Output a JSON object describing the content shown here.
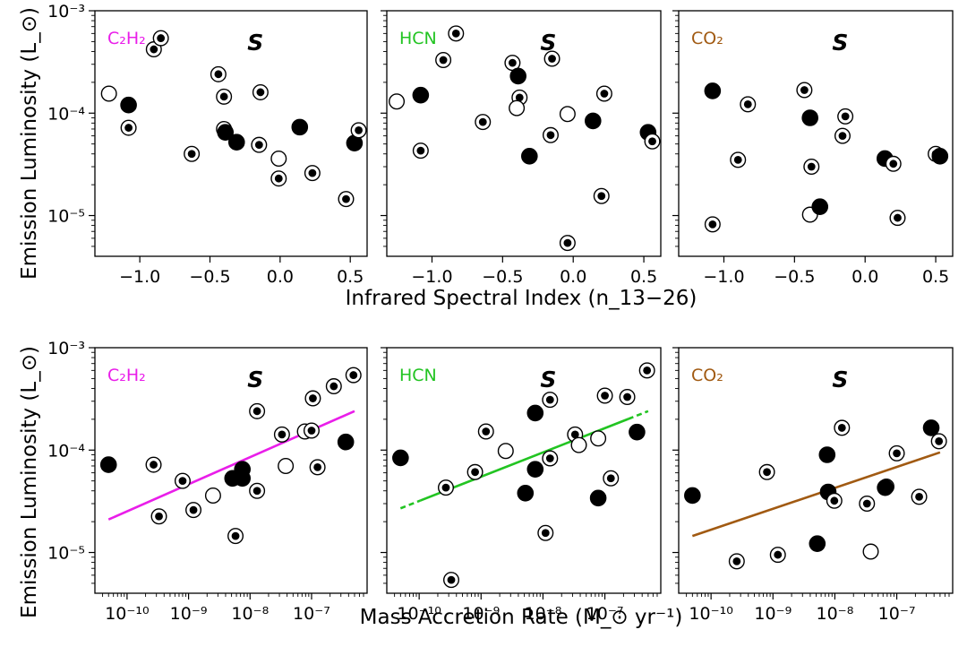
{
  "figure": {
    "row_ylabels": [
      "Emission Luminosity (L_⊙)",
      "Emission Luminosity (L_⊙)"
    ],
    "row_xlabels": [
      "Infrared Spectral Index (n_13−26)",
      "Mass Accretion Rate (M_⊙ yr⁻¹)"
    ]
  },
  "chart_data": [
    {
      "type": "scatter",
      "panel": "top-left",
      "molecule_label": "C₂H₂",
      "molecule_color": "#e91ee9",
      "stamp": "S",
      "x_scale": "linear",
      "y_scale": "log",
      "xlim": [
        -1.32,
        0.62
      ],
      "ylim": [
        4e-06,
        0.001
      ],
      "xticks": [
        -1.0,
        -0.5,
        0.0,
        0.5
      ],
      "xtick_labels": [
        "−1.0",
        "−0.5",
        "0.0",
        "0.5"
      ],
      "yticks": [
        1e-05,
        0.0001,
        0.001
      ],
      "ytick_labels": [
        "10⁻⁵",
        "10⁻⁴",
        "10⁻³"
      ],
      "points": [
        {
          "x": -1.22,
          "y": 0.000155,
          "m": "open"
        },
        {
          "x": -1.08,
          "y": 0.00012,
          "m": "filled"
        },
        {
          "x": -1.08,
          "y": 7.2e-05,
          "m": "dot"
        },
        {
          "x": -0.9,
          "y": 0.00042,
          "m": "dot"
        },
        {
          "x": -0.85,
          "y": 0.00054,
          "m": "dot"
        },
        {
          "x": -0.63,
          "y": 4e-05,
          "m": "dot"
        },
        {
          "x": -0.44,
          "y": 0.00024,
          "m": "dot"
        },
        {
          "x": -0.4,
          "y": 0.000145,
          "m": "dot"
        },
        {
          "x": -0.4,
          "y": 7e-05,
          "m": "dot"
        },
        {
          "x": -0.39,
          "y": 6.5e-05,
          "m": "filled"
        },
        {
          "x": -0.31,
          "y": 5.2e-05,
          "m": "filled"
        },
        {
          "x": -0.14,
          "y": 0.00016,
          "m": "dot"
        },
        {
          "x": -0.15,
          "y": 4.9e-05,
          "m": "dot"
        },
        {
          "x": -0.01,
          "y": 3.6e-05,
          "m": "open"
        },
        {
          "x": -0.01,
          "y": 2.3e-05,
          "m": "dot"
        },
        {
          "x": 0.14,
          "y": 7.3e-05,
          "m": "filled"
        },
        {
          "x": 0.23,
          "y": 2.6e-05,
          "m": "dot"
        },
        {
          "x": 0.47,
          "y": 1.45e-05,
          "m": "dot"
        },
        {
          "x": 0.53,
          "y": 5.1e-05,
          "m": "filled"
        },
        {
          "x": 0.56,
          "y": 6.8e-05,
          "m": "dot"
        }
      ]
    },
    {
      "type": "scatter",
      "panel": "top-middle",
      "molecule_label": "HCN",
      "molecule_color": "#22c422",
      "stamp": "S",
      "x_scale": "linear",
      "y_scale": "log",
      "xlim": [
        -1.32,
        0.62
      ],
      "ylim": [
        4e-06,
        0.001
      ],
      "xticks": [
        -1.0,
        -0.5,
        0.0,
        0.5
      ],
      "xtick_labels": [
        "−1.0",
        "−0.5",
        "0.0",
        "0.5"
      ],
      "yticks": [
        1e-05,
        0.0001,
        0.001
      ],
      "ytick_labels": [
        "",
        "",
        ""
      ],
      "points": [
        {
          "x": -1.25,
          "y": 0.00013,
          "m": "open"
        },
        {
          "x": -1.08,
          "y": 0.00015,
          "m": "filled"
        },
        {
          "x": -1.08,
          "y": 4.3e-05,
          "m": "dot"
        },
        {
          "x": -0.92,
          "y": 0.00033,
          "m": "dot"
        },
        {
          "x": -0.83,
          "y": 0.0006,
          "m": "dot"
        },
        {
          "x": -0.64,
          "y": 8.2e-05,
          "m": "dot"
        },
        {
          "x": -0.43,
          "y": 0.00031,
          "m": "dot"
        },
        {
          "x": -0.39,
          "y": 0.00023,
          "m": "filled"
        },
        {
          "x": -0.38,
          "y": 0.000142,
          "m": "dot"
        },
        {
          "x": -0.4,
          "y": 0.000112,
          "m": "open"
        },
        {
          "x": -0.31,
          "y": 3.8e-05,
          "m": "filled"
        },
        {
          "x": -0.15,
          "y": 0.00034,
          "m": "dot"
        },
        {
          "x": -0.16,
          "y": 6.1e-05,
          "m": "dot"
        },
        {
          "x": -0.04,
          "y": 9.8e-05,
          "m": "open"
        },
        {
          "x": -0.04,
          "y": 5.4e-06,
          "m": "dot"
        },
        {
          "x": 0.14,
          "y": 8.4e-05,
          "m": "filled"
        },
        {
          "x": 0.22,
          "y": 0.000155,
          "m": "dot"
        },
        {
          "x": 0.2,
          "y": 1.55e-05,
          "m": "dot"
        },
        {
          "x": 0.53,
          "y": 6.5e-05,
          "m": "filled"
        },
        {
          "x": 0.56,
          "y": 5.3e-05,
          "m": "dot"
        }
      ]
    },
    {
      "type": "scatter",
      "panel": "top-right",
      "molecule_label": "CO₂",
      "molecule_color": "#a15a12",
      "stamp": "S",
      "x_scale": "linear",
      "y_scale": "log",
      "xlim": [
        -1.32,
        0.62
      ],
      "ylim": [
        4e-06,
        0.001
      ],
      "xticks": [
        -1.0,
        -0.5,
        0.0,
        0.5
      ],
      "xtick_labels": [
        "−1.0",
        "−0.5",
        "0.0",
        "0.5"
      ],
      "yticks": [
        1e-05,
        0.0001,
        0.001
      ],
      "ytick_labels": [
        "",
        "",
        ""
      ],
      "points": [
        {
          "x": -1.08,
          "y": 0.000165,
          "m": "filled"
        },
        {
          "x": -1.08,
          "y": 8.2e-06,
          "m": "dot"
        },
        {
          "x": -0.83,
          "y": 0.000122,
          "m": "dot"
        },
        {
          "x": -0.9,
          "y": 3.5e-05,
          "m": "dot"
        },
        {
          "x": -0.43,
          "y": 0.000168,
          "m": "dot"
        },
        {
          "x": -0.39,
          "y": 9e-05,
          "m": "filled"
        },
        {
          "x": -0.38,
          "y": 3e-05,
          "m": "dot"
        },
        {
          "x": -0.39,
          "y": 1.02e-05,
          "m": "open"
        },
        {
          "x": -0.32,
          "y": 1.22e-05,
          "m": "filled"
        },
        {
          "x": -0.14,
          "y": 9.3e-05,
          "m": "dot"
        },
        {
          "x": -0.16,
          "y": 6e-05,
          "m": "dot"
        },
        {
          "x": 0.14,
          "y": 3.6e-05,
          "m": "filled"
        },
        {
          "x": 0.2,
          "y": 3.2e-05,
          "m": "dot"
        },
        {
          "x": 0.23,
          "y": 9.5e-06,
          "m": "dot"
        },
        {
          "x": 0.5,
          "y": 4e-05,
          "m": "dot"
        },
        {
          "x": 0.53,
          "y": 3.8e-05,
          "m": "filled"
        }
      ]
    },
    {
      "type": "scatter",
      "panel": "bottom-left",
      "molecule_label": "C₂H₂",
      "molecule_color": "#e91ee9",
      "stamp": "S",
      "x_scale": "log",
      "y_scale": "log",
      "xlim": [
        3e-11,
        8e-07
      ],
      "ylim": [
        4e-06,
        0.001
      ],
      "xticks": [
        1e-10,
        1e-09,
        1e-08,
        1e-07
      ],
      "xtick_labels": [
        "10⁻¹⁰",
        "10⁻⁹",
        "10⁻⁸",
        "10⁻⁷"
      ],
      "yticks": [
        1e-05,
        0.0001,
        0.001
      ],
      "ytick_labels": [
        "10⁻⁵",
        "10⁻⁴",
        "10⁻³"
      ],
      "fit": {
        "x": [
          5e-11,
          5e-07
        ],
        "y": [
          2.1e-05,
          0.00024
        ],
        "style": "solid"
      },
      "points": [
        {
          "x": 5e-11,
          "y": 7.2e-05,
          "m": "filled"
        },
        {
          "x": 2.7e-10,
          "y": 7.2e-05,
          "m": "dot"
        },
        {
          "x": 3.3e-10,
          "y": 2.25e-05,
          "m": "dot"
        },
        {
          "x": 8e-10,
          "y": 5e-05,
          "m": "dot"
        },
        {
          "x": 1.2e-09,
          "y": 2.6e-05,
          "m": "dot"
        },
        {
          "x": 2.5e-09,
          "y": 3.6e-05,
          "m": "open"
        },
        {
          "x": 5.2e-09,
          "y": 5.3e-05,
          "m": "filled"
        },
        {
          "x": 5.8e-09,
          "y": 1.45e-05,
          "m": "dot"
        },
        {
          "x": 7.5e-09,
          "y": 6.5e-05,
          "m": "filled"
        },
        {
          "x": 7.5e-09,
          "y": 5.3e-05,
          "m": "filled"
        },
        {
          "x": 1.3e-08,
          "y": 0.00024,
          "m": "dot"
        },
        {
          "x": 1.3e-08,
          "y": 4e-05,
          "m": "dot"
        },
        {
          "x": 3.3e-08,
          "y": 0.000142,
          "m": "dot"
        },
        {
          "x": 3.8e-08,
          "y": 7e-05,
          "m": "open"
        },
        {
          "x": 7.8e-08,
          "y": 0.000152,
          "m": "open"
        },
        {
          "x": 1e-07,
          "y": 0.000155,
          "m": "dot"
        },
        {
          "x": 1.05e-07,
          "y": 0.00032,
          "m": "dot"
        },
        {
          "x": 1.25e-07,
          "y": 6.8e-05,
          "m": "dot"
        },
        {
          "x": 2.3e-07,
          "y": 0.00042,
          "m": "dot"
        },
        {
          "x": 3.6e-07,
          "y": 0.00012,
          "m": "filled"
        },
        {
          "x": 4.8e-07,
          "y": 0.00054,
          "m": "dot"
        }
      ]
    },
    {
      "type": "scatter",
      "panel": "bottom-middle",
      "molecule_label": "HCN",
      "molecule_color": "#22c422",
      "stamp": "S",
      "x_scale": "log",
      "y_scale": "log",
      "xlim": [
        3e-11,
        8e-07
      ],
      "ylim": [
        4e-06,
        0.001
      ],
      "xticks": [
        1e-10,
        1e-09,
        1e-08,
        1e-07
      ],
      "xtick_labels": [
        "10⁻¹⁰",
        "10⁻⁹",
        "10⁻⁸",
        "10⁻⁷"
      ],
      "yticks": [
        1e-05,
        0.0001,
        0.001
      ],
      "ytick_labels": [
        "",
        "",
        ""
      ],
      "fit": {
        "x": [
          5e-11,
          5e-07
        ],
        "y": [
          2.7e-05,
          0.00024
        ],
        "style": "solid",
        "dashed_ends": true
      },
      "points": [
        {
          "x": 5e-11,
          "y": 8.4e-05,
          "m": "filled"
        },
        {
          "x": 2.7e-10,
          "y": 4.3e-05,
          "m": "dot"
        },
        {
          "x": 3.3e-10,
          "y": 5.4e-06,
          "m": "dot"
        },
        {
          "x": 8e-10,
          "y": 6.1e-05,
          "m": "dot"
        },
        {
          "x": 1.2e-09,
          "y": 0.000152,
          "m": "dot"
        },
        {
          "x": 2.5e-09,
          "y": 9.8e-05,
          "m": "open"
        },
        {
          "x": 5.2e-09,
          "y": 3.8e-05,
          "m": "filled"
        },
        {
          "x": 7.5e-09,
          "y": 6.5e-05,
          "m": "filled"
        },
        {
          "x": 7.5e-09,
          "y": 0.00023,
          "m": "filled"
        },
        {
          "x": 1.1e-08,
          "y": 1.55e-05,
          "m": "dot"
        },
        {
          "x": 1.3e-08,
          "y": 8.3e-05,
          "m": "dot"
        },
        {
          "x": 1.3e-08,
          "y": 0.00031,
          "m": "dot"
        },
        {
          "x": 3.3e-08,
          "y": 0.000142,
          "m": "dot"
        },
        {
          "x": 3.8e-08,
          "y": 0.000112,
          "m": "open"
        },
        {
          "x": 7.8e-08,
          "y": 0.00013,
          "m": "open"
        },
        {
          "x": 7.8e-08,
          "y": 3.4e-05,
          "m": "filled"
        },
        {
          "x": 1e-07,
          "y": 0.00034,
          "m": "dot"
        },
        {
          "x": 1.25e-07,
          "y": 5.3e-05,
          "m": "dot"
        },
        {
          "x": 2.3e-07,
          "y": 0.00033,
          "m": "dot"
        },
        {
          "x": 3.3e-07,
          "y": 0.00015,
          "m": "filled"
        },
        {
          "x": 4.8e-07,
          "y": 0.0006,
          "m": "dot"
        }
      ]
    },
    {
      "type": "scatter",
      "panel": "bottom-right",
      "molecule_label": "CO₂",
      "molecule_color": "#a15a12",
      "stamp": "S",
      "x_scale": "log",
      "y_scale": "log",
      "xlim": [
        3e-11,
        8e-07
      ],
      "ylim": [
        4e-06,
        0.001
      ],
      "xticks": [
        1e-10,
        1e-09,
        1e-08,
        1e-07
      ],
      "xtick_labels": [
        "10⁻¹⁰",
        "10⁻⁹",
        "10⁻⁸",
        "10⁻⁷"
      ],
      "yticks": [
        1e-05,
        0.0001,
        0.001
      ],
      "ytick_labels": [
        "",
        "",
        ""
      ],
      "fit": {
        "x": [
          5e-11,
          5e-07
        ],
        "y": [
          1.45e-05,
          9.5e-05
        ],
        "style": "solid"
      },
      "points": [
        {
          "x": 5e-11,
          "y": 3.6e-05,
          "m": "filled"
        },
        {
          "x": 2.6e-10,
          "y": 8.2e-06,
          "m": "dot"
        },
        {
          "x": 8e-10,
          "y": 6.1e-05,
          "m": "dot"
        },
        {
          "x": 1.2e-09,
          "y": 9.5e-06,
          "m": "dot"
        },
        {
          "x": 5.2e-09,
          "y": 1.22e-05,
          "m": "filled"
        },
        {
          "x": 7.5e-09,
          "y": 9e-05,
          "m": "filled"
        },
        {
          "x": 7.8e-09,
          "y": 3.9e-05,
          "m": "filled"
        },
        {
          "x": 9.8e-09,
          "y": 3.2e-05,
          "m": "dot"
        },
        {
          "x": 1.3e-08,
          "y": 0.000165,
          "m": "dot"
        },
        {
          "x": 3.3e-08,
          "y": 3e-05,
          "m": "dot"
        },
        {
          "x": 3.8e-08,
          "y": 1.02e-05,
          "m": "open"
        },
        {
          "x": 6.8e-08,
          "y": 4.4e-05,
          "m": "dot"
        },
        {
          "x": 6.5e-08,
          "y": 4.3e-05,
          "m": "filled"
        },
        {
          "x": 1e-07,
          "y": 9.3e-05,
          "m": "dot"
        },
        {
          "x": 2.3e-07,
          "y": 3.5e-05,
          "m": "dot"
        },
        {
          "x": 3.6e-07,
          "y": 0.000165,
          "m": "filled"
        },
        {
          "x": 4.8e-07,
          "y": 0.000122,
          "m": "dot"
        }
      ]
    }
  ]
}
